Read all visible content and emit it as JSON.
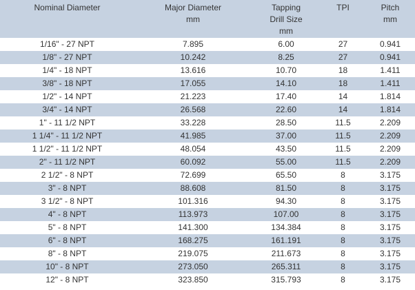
{
  "table": {
    "header": [
      [
        "Nominal Diameter"
      ],
      [
        "Major Diameter",
        "mm"
      ],
      [
        "Tapping",
        "Drill Size",
        "mm"
      ],
      [
        "TPI"
      ],
      [
        "Pitch",
        "mm"
      ]
    ],
    "rows": [
      [
        "1/16\" - 27 NPT",
        "7.895",
        "6.00",
        "27",
        "0.941"
      ],
      [
        "1/8\" - 27 NPT",
        "10.242",
        "8.25",
        "27",
        "0.941"
      ],
      [
        "1/4\" - 18 NPT",
        "13.616",
        "10.70",
        "18",
        "1.411"
      ],
      [
        "3/8\" - 18 NPT",
        "17.055",
        "14.10",
        "18",
        "1.411"
      ],
      [
        "1/2\" - 14 NPT",
        "21.223",
        "17.40",
        "14",
        "1.814"
      ],
      [
        "3/4\" - 14 NPT",
        "26.568",
        "22.60",
        "14",
        "1.814"
      ],
      [
        "1\" - 11 1/2 NPT",
        "33.228",
        "28.50",
        "11.5",
        "2.209"
      ],
      [
        "1 1/4\" - 11 1/2 NPT",
        "41.985",
        "37.00",
        "11.5",
        "2.209"
      ],
      [
        "1 1/2\" - 11 1/2 NPT",
        "48.054",
        "43.50",
        "11.5",
        "2.209"
      ],
      [
        "2\" - 11 1/2 NPT",
        "60.092",
        "55.00",
        "11.5",
        "2.209"
      ],
      [
        "2 1/2\" - 8 NPT",
        "72.699",
        "65.50",
        "8",
        "3.175"
      ],
      [
        "3\" - 8 NPT",
        "88.608",
        "81.50",
        "8",
        "3.175"
      ],
      [
        "3 1/2\" - 8 NPT",
        "101.316",
        "94.30",
        "8",
        "3.175"
      ],
      [
        "4\" - 8 NPT",
        "113.973",
        "107.00",
        "8",
        "3.175"
      ],
      [
        "5\" - 8 NPT",
        "141.300",
        "134.384",
        "8",
        "3.175"
      ],
      [
        "6\" - 8 NPT",
        "168.275",
        "161.191",
        "8",
        "3.175"
      ],
      [
        "8\" - 8 NPT",
        "219.075",
        "211.673",
        "8",
        "3.175"
      ],
      [
        "10\" - 8 NPT",
        "273.050",
        "265.311",
        "8",
        "3.175"
      ],
      [
        "12\" - 8 NPT",
        "323.850",
        "315.793",
        "8",
        "3.175"
      ]
    ]
  }
}
